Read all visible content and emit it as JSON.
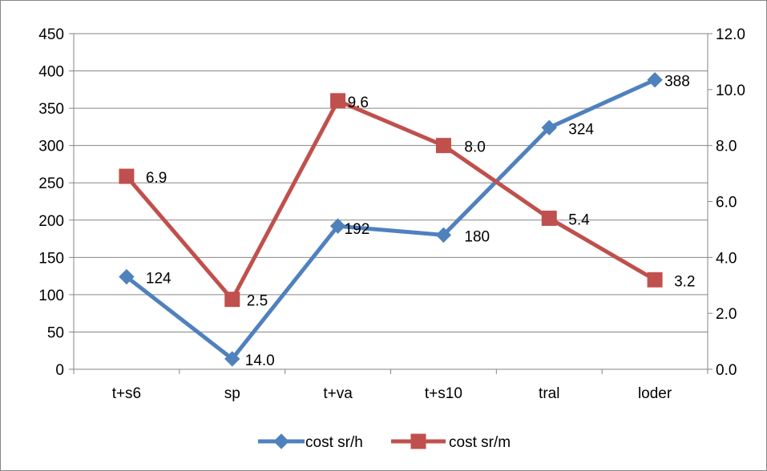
{
  "chart_data": {
    "type": "line",
    "categories": [
      "t+s6",
      "sp",
      "t+va",
      "t+s10",
      "tral",
      "loder"
    ],
    "series": [
      {
        "name": "cost sr/h",
        "axis": "left",
        "color": "#4F81BD",
        "marker": "diamond",
        "values": [
          124,
          14,
          192,
          180,
          324,
          388
        ],
        "labels": [
          "124",
          "14.0",
          "192",
          "180",
          "324",
          "388"
        ]
      },
      {
        "name": "cost sr/m",
        "axis": "right",
        "color": "#C0504D",
        "marker": "square",
        "values": [
          6.9,
          2.5,
          9.6,
          8.0,
          5.4,
          3.2
        ],
        "labels": [
          "6.9",
          "2.5",
          "9.6",
          "8.0",
          "5.4",
          "3.2"
        ]
      }
    ],
    "y_left": {
      "range": [
        0,
        450
      ],
      "ticks": [
        "0",
        "50",
        "100",
        "150",
        "200",
        "250",
        "300",
        "350",
        "400",
        "450"
      ]
    },
    "y_right": {
      "range": [
        0,
        12
      ],
      "ticks": [
        "0.0",
        "2.0",
        "4.0",
        "6.0",
        "8.0",
        "10.0",
        "12.0"
      ]
    },
    "grid": true,
    "legend": "bottom",
    "title": "",
    "xlabel": "",
    "ylabel": ""
  }
}
